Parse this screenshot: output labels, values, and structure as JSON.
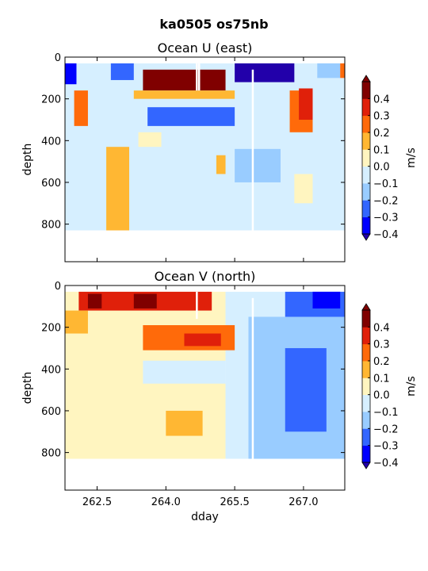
{
  "figure": {
    "suptitle": "ka0505 os75nb"
  },
  "chart_data": [
    {
      "type": "heatmap",
      "title": "Ocean U (east)",
      "xlabel": "",
      "ylabel": "depth",
      "xlim": [
        261.8,
        267.9
      ],
      "ylim": [
        980,
        0
      ],
      "xticks": [
        262.5,
        264.0,
        265.5,
        267.0
      ],
      "xtick_labels": [
        "",
        "",
        "",
        ""
      ],
      "yticks": [
        0,
        200,
        400,
        600,
        800
      ],
      "ytick_labels": [
        "0",
        "200",
        "400",
        "600",
        "800"
      ],
      "colorbar": {
        "label": "m/s",
        "levels": [
          -0.4,
          -0.3,
          -0.2,
          -0.1,
          0.0,
          0.1,
          0.2,
          0.3,
          0.4
        ],
        "tick_labels": [
          "−0.4",
          "−0.3",
          "−0.2",
          "−0.1",
          "0.0",
          "0.1",
          "0.2",
          "0.3",
          "0.4"
        ],
        "colors": [
          "#0000ff",
          "#3366ff",
          "#99ccff",
          "#d6efff",
          "#fff5c0",
          "#ffb733",
          "#ff6a0a",
          "#e0200a",
          "#800000"
        ],
        "under_color": "#2200aa",
        "over_color": "#800000",
        "extend": "both"
      },
      "data_extent": {
        "x": [
          261.8,
          267.9
        ],
        "depth_top": 30,
        "depth_bottom": 830
      },
      "regions": [
        {
          "x": [
            261.8,
            267.9
          ],
          "depth": [
            30,
            830
          ],
          "value": -0.05
        },
        {
          "x": [
            261.8,
            262.05
          ],
          "depth": [
            30,
            130
          ],
          "value": -0.38
        },
        {
          "x": [
            262.8,
            263.3
          ],
          "depth": [
            30,
            110
          ],
          "value": -0.25
        },
        {
          "x": [
            263.5,
            265.3
          ],
          "depth": [
            60,
            160
          ],
          "value": 0.45
        },
        {
          "x": [
            263.3,
            265.5
          ],
          "depth": [
            160,
            200
          ],
          "value": 0.15
        },
        {
          "x": [
            263.6,
            265.5
          ],
          "depth": [
            240,
            330
          ],
          "value": -0.25
        },
        {
          "x": [
            265.5,
            266.8
          ],
          "depth": [
            30,
            120
          ],
          "value": -0.42
        },
        {
          "x": [
            267.3,
            267.8
          ],
          "depth": [
            30,
            100
          ],
          "value": -0.15
        },
        {
          "x": [
            267.8,
            267.9
          ],
          "depth": [
            30,
            100
          ],
          "value": 0.25
        },
        {
          "x": [
            262.0,
            262.3
          ],
          "depth": [
            160,
            330
          ],
          "value": 0.25
        },
        {
          "x": [
            262.7,
            263.2
          ],
          "depth": [
            430,
            830
          ],
          "value": 0.15
        },
        {
          "x": [
            266.7,
            267.2
          ],
          "depth": [
            160,
            360
          ],
          "value": 0.25
        },
        {
          "x": [
            266.9,
            267.2
          ],
          "depth": [
            150,
            300
          ],
          "value": 0.3
        },
        {
          "x": [
            265.1,
            265.3
          ],
          "depth": [
            470,
            560
          ],
          "value": 0.15
        },
        {
          "x": [
            263.4,
            263.9
          ],
          "depth": [
            360,
            430
          ],
          "value": 0.05
        },
        {
          "x": [
            265.5,
            266.5
          ],
          "depth": [
            440,
            600
          ],
          "value": -0.15
        },
        {
          "x": [
            266.8,
            267.2
          ],
          "depth": [
            560,
            700
          ],
          "value": 0.05
        }
      ],
      "gaps": [
        {
          "x": 264.67,
          "depth": [
            30,
            160
          ]
        },
        {
          "x": 264.72,
          "depth": [
            30,
            160
          ]
        },
        {
          "x": 265.89,
          "depth": [
            60,
            830
          ]
        }
      ]
    },
    {
      "type": "heatmap",
      "title": "Ocean V (north)",
      "xlabel": "dday",
      "ylabel": "depth",
      "xlim": [
        261.8,
        267.9
      ],
      "ylim": [
        980,
        0
      ],
      "xticks": [
        262.5,
        264.0,
        265.5,
        267.0
      ],
      "xtick_labels": [
        "262.5",
        "264.0",
        "265.5",
        "267.0"
      ],
      "yticks": [
        0,
        200,
        400,
        600,
        800
      ],
      "ytick_labels": [
        "0",
        "200",
        "400",
        "600",
        "800"
      ],
      "colorbar": {
        "label": "m/s",
        "levels": [
          -0.4,
          -0.3,
          -0.2,
          -0.1,
          0.0,
          0.1,
          0.2,
          0.3,
          0.4
        ],
        "tick_labels": [
          "−0.4",
          "−0.3",
          "−0.2",
          "−0.1",
          "0.0",
          "0.1",
          "0.2",
          "0.3",
          "0.4"
        ],
        "colors": [
          "#0000ff",
          "#3366ff",
          "#99ccff",
          "#d6efff",
          "#fff5c0",
          "#ffb733",
          "#ff6a0a",
          "#e0200a",
          "#800000"
        ],
        "under_color": "#2200aa",
        "over_color": "#800000",
        "extend": "both"
      },
      "data_extent": {
        "x": [
          261.8,
          267.9
        ],
        "depth_top": 30,
        "depth_bottom": 830
      },
      "regions": [
        {
          "x": [
            261.8,
            265.3
          ],
          "depth": [
            30,
            830
          ],
          "value": 0.05
        },
        {
          "x": [
            265.3,
            267.9
          ],
          "depth": [
            30,
            830
          ],
          "value": -0.1
        },
        {
          "x": [
            262.1,
            265.0
          ],
          "depth": [
            30,
            120
          ],
          "value": 0.32
        },
        {
          "x": [
            262.3,
            262.6
          ],
          "depth": [
            40,
            110
          ],
          "value": 0.45
        },
        {
          "x": [
            263.3,
            263.8
          ],
          "depth": [
            40,
            110
          ],
          "value": 0.45
        },
        {
          "x": [
            262.8,
            263.2
          ],
          "depth": [
            40,
            100
          ],
          "value": 0.35
        },
        {
          "x": [
            263.5,
            265.5
          ],
          "depth": [
            190,
            310
          ],
          "value": 0.25
        },
        {
          "x": [
            264.4,
            265.2
          ],
          "depth": [
            230,
            290
          ],
          "value": 0.35
        },
        {
          "x": [
            261.8,
            262.3
          ],
          "depth": [
            120,
            230
          ],
          "value": 0.15
        },
        {
          "x": [
            263.5,
            265.3
          ],
          "depth": [
            360,
            470
          ],
          "value": -0.08
        },
        {
          "x": [
            266.6,
            267.9
          ],
          "depth": [
            30,
            150
          ],
          "value": -0.3
        },
        {
          "x": [
            267.2,
            267.8
          ],
          "depth": [
            30,
            110
          ],
          "value": -0.4
        },
        {
          "x": [
            265.8,
            267.9
          ],
          "depth": [
            150,
            830
          ],
          "value": -0.15
        },
        {
          "x": [
            266.6,
            267.5
          ],
          "depth": [
            300,
            700
          ],
          "value": -0.22
        },
        {
          "x": [
            261.8,
            265.2
          ],
          "depth": [
            480,
            830
          ],
          "value": 0.08
        },
        {
          "x": [
            264.0,
            264.8
          ],
          "depth": [
            600,
            720
          ],
          "value": 0.12
        }
      ],
      "gaps": [
        {
          "x": 264.67,
          "depth": [
            30,
            160
          ]
        },
        {
          "x": 265.89,
          "depth": [
            60,
            830
          ]
        }
      ]
    }
  ]
}
